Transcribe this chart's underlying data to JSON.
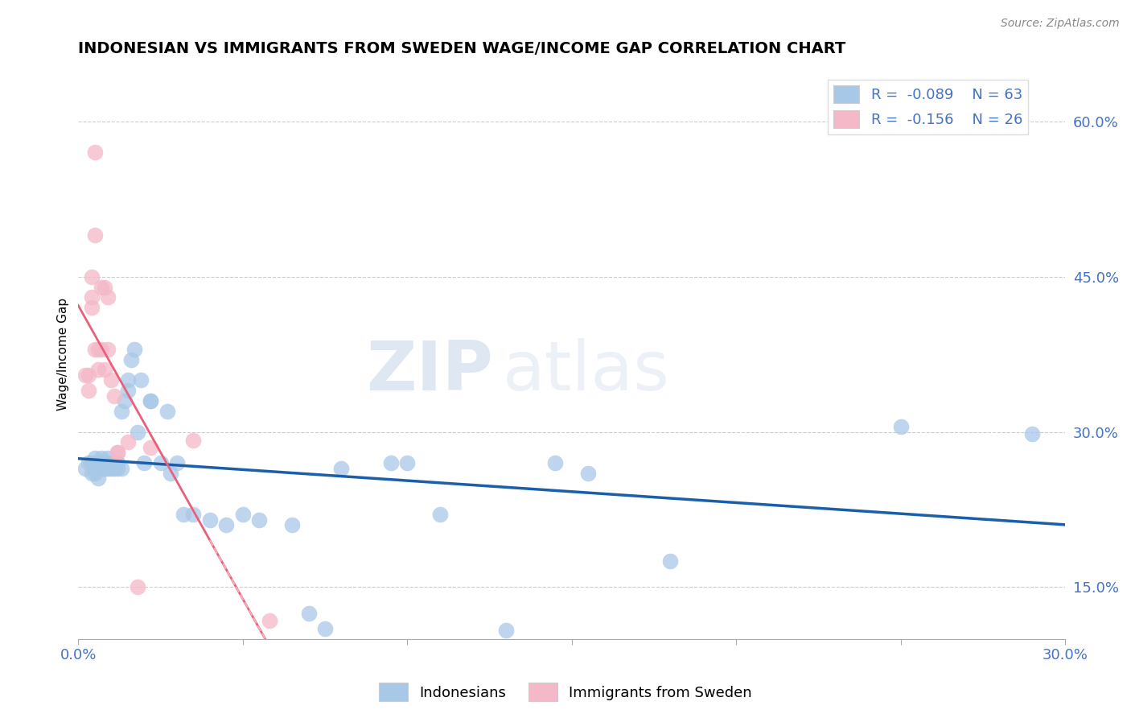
{
  "title": "INDONESIAN VS IMMIGRANTS FROM SWEDEN WAGE/INCOME GAP CORRELATION CHART",
  "source": "Source: ZipAtlas.com",
  "ylabel": "Wage/Income Gap",
  "xlim": [
    0.0,
    0.3
  ],
  "ylim": [
    0.1,
    0.65
  ],
  "xticks": [
    0.0,
    0.05,
    0.1,
    0.15,
    0.2,
    0.25,
    0.3
  ],
  "xtick_labels": [
    "0.0%",
    "",
    "",
    "",
    "",
    "",
    "30.0%"
  ],
  "yticks": [
    0.15,
    0.3,
    0.45,
    0.6
  ],
  "ytick_labels": [
    "15.0%",
    "30.0%",
    "45.0%",
    "60.0%"
  ],
  "r_blue": -0.089,
  "n_blue": 63,
  "r_pink": -0.156,
  "n_pink": 26,
  "blue_scatter_color": "#a8c8e8",
  "pink_scatter_color": "#f4b8c8",
  "blue_line_color": "#1a5fa8",
  "pink_line_color": "#e8607a",
  "pink_dash_color": "#f0b0b8",
  "legend_label_blue": "Indonesians",
  "legend_label_pink": "Immigrants from Sweden",
  "watermark_zip": "ZIP",
  "watermark_atlas": "atlas",
  "blue_scatter_x": [
    0.002,
    0.003,
    0.004,
    0.004,
    0.005,
    0.005,
    0.005,
    0.006,
    0.006,
    0.006,
    0.007,
    0.007,
    0.007,
    0.007,
    0.008,
    0.008,
    0.008,
    0.008,
    0.009,
    0.009,
    0.009,
    0.01,
    0.01,
    0.01,
    0.011,
    0.011,
    0.012,
    0.012,
    0.013,
    0.013,
    0.014,
    0.015,
    0.015,
    0.016,
    0.017,
    0.018,
    0.019,
    0.02,
    0.022,
    0.022,
    0.025,
    0.027,
    0.028,
    0.03,
    0.032,
    0.035,
    0.04,
    0.045,
    0.05,
    0.055,
    0.065,
    0.07,
    0.075,
    0.08,
    0.095,
    0.1,
    0.11,
    0.13,
    0.145,
    0.155,
    0.18,
    0.25,
    0.29
  ],
  "blue_scatter_y": [
    0.265,
    0.27,
    0.26,
    0.27,
    0.26,
    0.265,
    0.275,
    0.27,
    0.255,
    0.27,
    0.27,
    0.265,
    0.27,
    0.275,
    0.265,
    0.27,
    0.265,
    0.27,
    0.265,
    0.27,
    0.275,
    0.27,
    0.265,
    0.27,
    0.265,
    0.27,
    0.265,
    0.27,
    0.265,
    0.32,
    0.33,
    0.34,
    0.35,
    0.37,
    0.38,
    0.3,
    0.35,
    0.27,
    0.33,
    0.33,
    0.27,
    0.32,
    0.26,
    0.27,
    0.22,
    0.22,
    0.215,
    0.21,
    0.22,
    0.215,
    0.21,
    0.125,
    0.11,
    0.265,
    0.27,
    0.27,
    0.22,
    0.108,
    0.27,
    0.26,
    0.175,
    0.305,
    0.298
  ],
  "pink_scatter_x": [
    0.002,
    0.003,
    0.003,
    0.004,
    0.004,
    0.004,
    0.005,
    0.005,
    0.005,
    0.006,
    0.006,
    0.007,
    0.007,
    0.008,
    0.008,
    0.009,
    0.009,
    0.01,
    0.011,
    0.012,
    0.012,
    0.015,
    0.018,
    0.022,
    0.035,
    0.058
  ],
  "pink_scatter_y": [
    0.355,
    0.355,
    0.34,
    0.42,
    0.45,
    0.43,
    0.57,
    0.49,
    0.38,
    0.36,
    0.38,
    0.38,
    0.44,
    0.36,
    0.44,
    0.43,
    0.38,
    0.35,
    0.335,
    0.28,
    0.28,
    0.29,
    0.15,
    0.285,
    0.292,
    0.118
  ]
}
